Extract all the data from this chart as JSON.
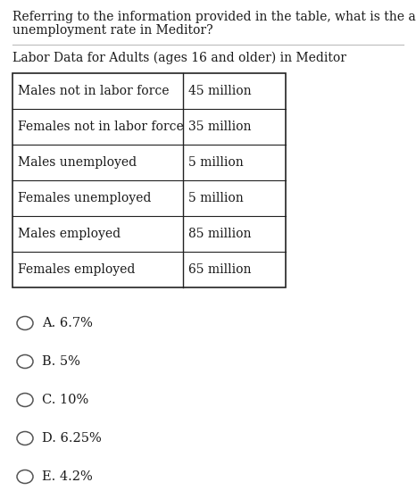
{
  "question_line1": "Referring to the information provided in the table, what is the adult",
  "question_line2": "unemployment rate in Meditor?",
  "table_title": "Labor Data for Adults (ages 16 and older) in Meditor",
  "table_rows": [
    [
      "Males not in labor force",
      "45 million"
    ],
    [
      "Females not in labor force",
      "35 million"
    ],
    [
      "Males unemployed",
      "5 million"
    ],
    [
      "Females unemployed",
      "5 million"
    ],
    [
      "Males employed",
      "85 million"
    ],
    [
      "Females employed",
      "65 million"
    ]
  ],
  "options": [
    "A. 6.7%",
    "B. 5%",
    "C. 10%",
    "D. 6.25%",
    "E. 4.2%"
  ],
  "bg_color": "#ffffff",
  "text_color": "#1a1a1a",
  "table_border_color": "#222222",
  "font_size_question": 10.0,
  "font_size_title": 10.0,
  "font_size_table": 10.0,
  "font_size_options": 10.5,
  "fig_width": 4.66,
  "fig_height": 5.59,
  "dpi": 100
}
